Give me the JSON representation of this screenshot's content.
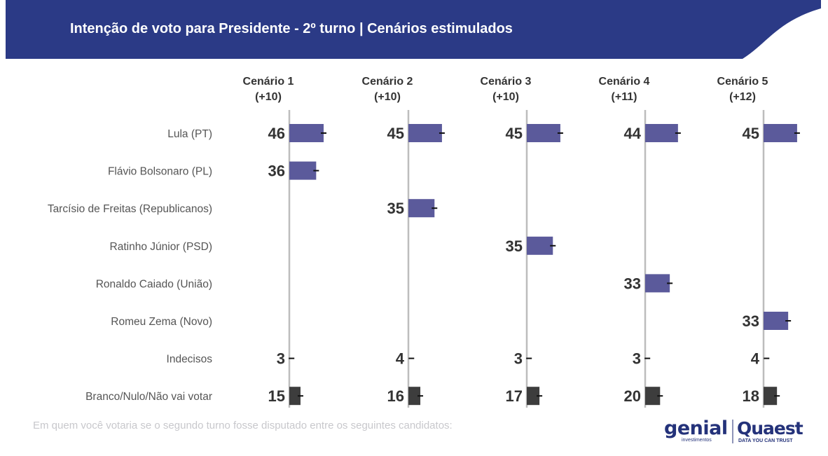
{
  "header": {
    "title": "Intenção de voto para Presidente - 2º turno | Cenários estimulados",
    "band_color": "#2b3a86"
  },
  "chart_data": {
    "type": "bar",
    "orientation": "horizontal",
    "title": "Intenção de voto para Presidente - 2º turno | Cenários estimulados",
    "categories": [
      "Lula (PT)",
      "Flávio Bolsonaro (PL)",
      "Tarcísio de Freitas (Republicanos)",
      "Ratinho Júnior (PSD)",
      "Ronaldo Caiado (União)",
      "Romeu Zema (Novo)",
      "Indecisos",
      "Branco/Nulo/Não vai votar"
    ],
    "series": [
      {
        "name": "Cenário 1",
        "margin": "(+10)",
        "values": [
          46,
          36,
          null,
          null,
          null,
          null,
          3,
          15
        ]
      },
      {
        "name": "Cenário 2",
        "margin": "(+10)",
        "values": [
          45,
          null,
          35,
          null,
          null,
          null,
          4,
          16
        ]
      },
      {
        "name": "Cenário 3",
        "margin": "(+10)",
        "values": [
          45,
          null,
          null,
          35,
          null,
          null,
          3,
          17
        ]
      },
      {
        "name": "Cenário 4",
        "margin": "(+11)",
        "values": [
          44,
          null,
          null,
          null,
          33,
          null,
          3,
          20
        ]
      },
      {
        "name": "Cenário 5",
        "margin": "(+12)",
        "values": [
          45,
          null,
          null,
          null,
          null,
          33,
          4,
          18
        ]
      }
    ],
    "candidate_color": "#5b5a9b",
    "other_color": "#3d3d3d",
    "axis_color": "#bdbdbd",
    "error_bar_color": "#111111"
  },
  "footnote": "Em quem você votaria se o segundo turno fosse disputado entre os seguintes candidatos:",
  "logos": {
    "genial": "genial",
    "genial_sub": "investimentos",
    "quaest": "Quaest",
    "quaest_sub": "DATA YOU CAN TRUST"
  }
}
